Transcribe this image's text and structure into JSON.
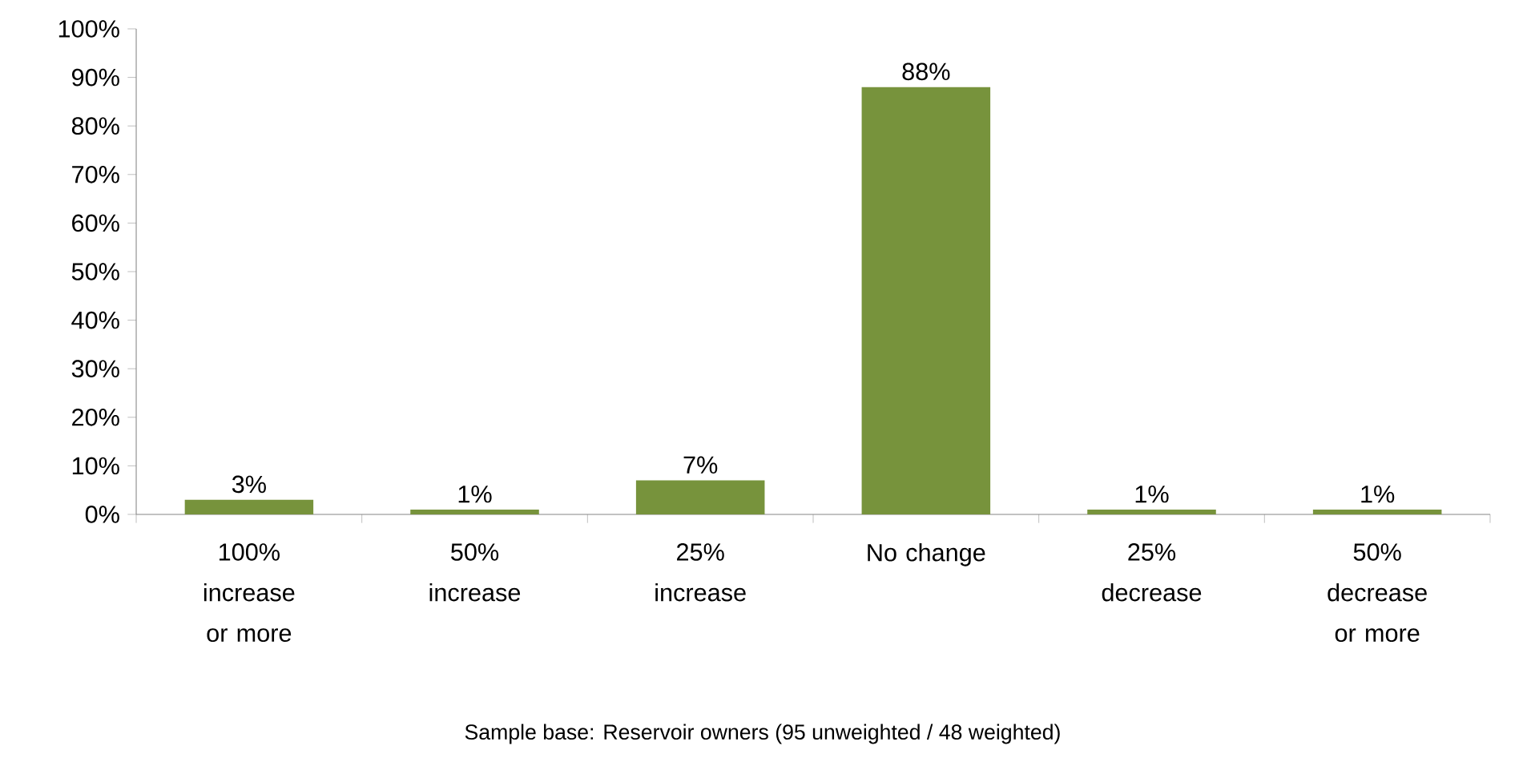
{
  "chart_data": {
    "type": "bar",
    "categories": [
      "100% increase or more",
      "50% increase",
      "25% increase",
      "No change",
      "25% decrease",
      "50% decrease or more"
    ],
    "values": [
      3,
      1,
      7,
      88,
      1,
      1
    ],
    "value_labels": [
      "3%",
      "1%",
      "7%",
      "88%",
      "1%",
      "1%"
    ],
    "color": "#77933c",
    "ylim": [
      0,
      100
    ],
    "yticks": [
      {
        "value": 0,
        "label": "0%"
      },
      {
        "value": 10,
        "label": "10%"
      },
      {
        "value": 20,
        "label": "20%"
      },
      {
        "value": 30,
        "label": "30%"
      },
      {
        "value": 40,
        "label": "40%"
      },
      {
        "value": 50,
        "label": "50%"
      },
      {
        "value": 60,
        "label": "60%"
      },
      {
        "value": 70,
        "label": "70%"
      },
      {
        "value": 80,
        "label": "80%"
      },
      {
        "value": 90,
        "label": "90%"
      },
      {
        "value": 100,
        "label": "100%"
      }
    ],
    "annotations": [
      "Sample base: Reservoir owners  (95 unweighted / 48 weighted)"
    ]
  }
}
